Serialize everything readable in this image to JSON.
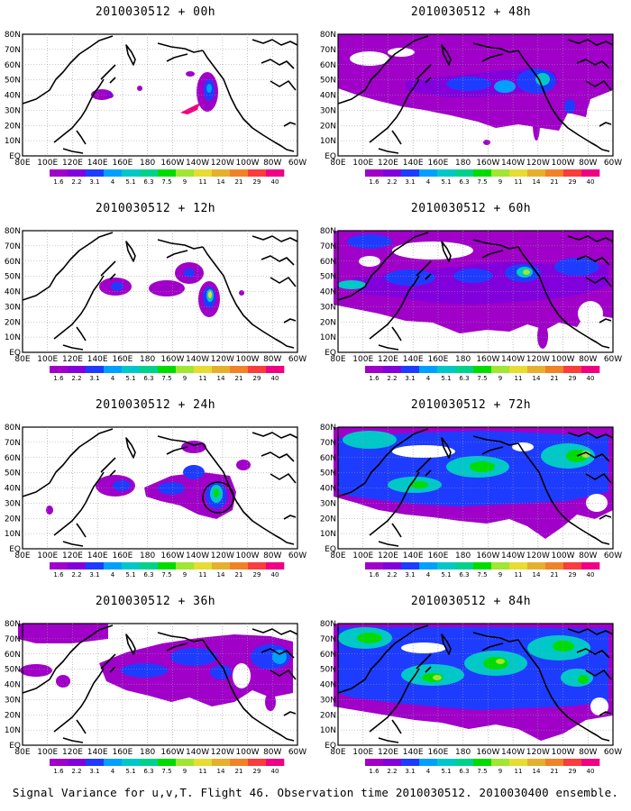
{
  "figure": {
    "caption": "Signal Variance for u,v,T. Flight 46. Observation time 2010030512. 2010030400 ensemble."
  },
  "latitude_labels": [
    "80N",
    "70N",
    "60N",
    "50N",
    "40N",
    "30N",
    "20N",
    "10N",
    "EQ"
  ],
  "longitude_labels": [
    "80E",
    "100E",
    "120E",
    "140E",
    "160E",
    "180",
    "160W",
    "140W",
    "120W",
    "100W",
    "80W",
    "60W"
  ],
  "colorbar": {
    "levels": [
      "1.6",
      "2.2",
      "3.1",
      "4",
      "5.1",
      "6.3",
      "7.5",
      "9",
      "11",
      "14",
      "21",
      "29",
      "40"
    ],
    "colors": [
      "#a000c8",
      "#8200dc",
      "#1e3cff",
      "#00a0ff",
      "#00c8c8",
      "#00d28c",
      "#00dc00",
      "#a0e632",
      "#e6dc32",
      "#e6af2d",
      "#f08228",
      "#fa3c3c",
      "#f00082"
    ]
  },
  "panels": [
    {
      "title": "2010030512 + 00h"
    },
    {
      "title": "2010030512 + 48h"
    },
    {
      "title": "2010030512 + 12h"
    },
    {
      "title": "2010030512 + 60h"
    },
    {
      "title": "2010030512 + 24h"
    },
    {
      "title": "2010030512 + 72h"
    },
    {
      "title": "2010030512 + 36h"
    },
    {
      "title": "2010030512 + 84h"
    }
  ]
}
